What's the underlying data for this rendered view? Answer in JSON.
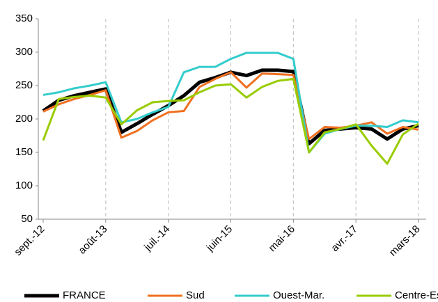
{
  "chart_data": {
    "type": "line",
    "categories": [
      "sept.-12",
      null,
      null,
      null,
      "août-13",
      null,
      null,
      null,
      "juil.-14",
      null,
      null,
      null,
      "juin-15",
      null,
      null,
      null,
      "mai-16",
      null,
      null,
      null,
      "avr.-17",
      null,
      null,
      null,
      "mars-18"
    ],
    "series": [
      {
        "name": "FRANCE",
        "color": "#000000",
        "values": [
          212,
          228,
          235,
          240,
          245,
          180,
          193,
          207,
          220,
          235,
          255,
          262,
          270,
          265,
          273,
          273,
          271,
          163,
          183,
          185,
          187,
          185,
          170,
          185,
          190
        ]
      },
      {
        "name": "Sud",
        "color": "#f07020",
        "values": [
          211,
          222,
          230,
          236,
          243,
          172,
          182,
          198,
          210,
          212,
          248,
          260,
          270,
          247,
          268,
          267,
          266,
          170,
          188,
          187,
          190,
          195,
          178,
          188,
          184
        ]
      },
      {
        "name": "Ouest-Mar.",
        "color": "#33cccc",
        "values": [
          236,
          240,
          246,
          250,
          255,
          195,
          200,
          210,
          218,
          270,
          278,
          278,
          290,
          299,
          299,
          299,
          290,
          150,
          178,
          185,
          190,
          190,
          188,
          198,
          195
        ]
      },
      {
        "name": "Centre-Est",
        "color": "#99cc00",
        "values": [
          168,
          230,
          233,
          235,
          232,
          192,
          213,
          225,
          227,
          228,
          240,
          250,
          252,
          232,
          248,
          257,
          260,
          150,
          180,
          185,
          192,
          160,
          133,
          177,
          193
        ]
      }
    ],
    "ylim": [
      50,
      350
    ],
    "yticks": [
      50,
      100,
      150,
      200,
      250,
      300,
      350
    ],
    "legend": "bottom"
  }
}
